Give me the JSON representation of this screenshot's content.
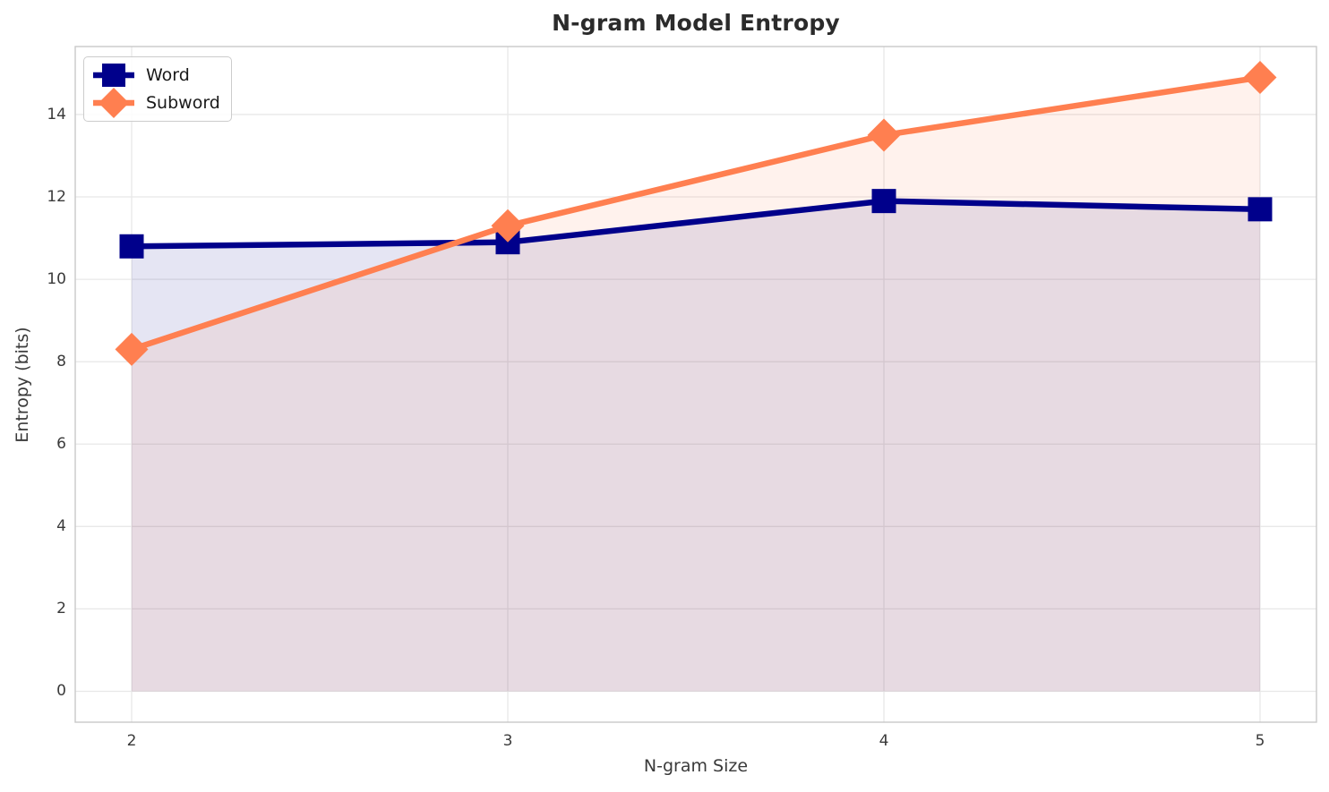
{
  "chart_data": {
    "type": "line",
    "title": "N-gram Model Entropy",
    "xlabel": "N-gram Size",
    "ylabel": "Entropy (bits)",
    "x": [
      2,
      3,
      4,
      5
    ],
    "series": [
      {
        "name": "Word",
        "color": "#00008B",
        "marker": "square",
        "values": [
          10.8,
          10.9,
          11.9,
          11.7
        ]
      },
      {
        "name": "Subword",
        "color": "#FF7F50",
        "marker": "diamond",
        "values": [
          8.3,
          11.3,
          13.5,
          14.9
        ]
      }
    ],
    "fill_alpha": 0.1,
    "fill_baseline": 0,
    "xlim": [
      1.85,
      5.15
    ],
    "ylim": [
      -0.75,
      15.65
    ],
    "xticks": [
      "2",
      "3",
      "4",
      "5"
    ],
    "yticks": [
      "0",
      "2",
      "4",
      "6",
      "8",
      "10",
      "12",
      "14"
    ],
    "grid": true,
    "grid_color": "#e8e8e8",
    "spine_color": "#c9c9c9",
    "legend_position": "upper left",
    "tick_color": "#3a3a3a",
    "title_color": "#2b2b2b"
  }
}
